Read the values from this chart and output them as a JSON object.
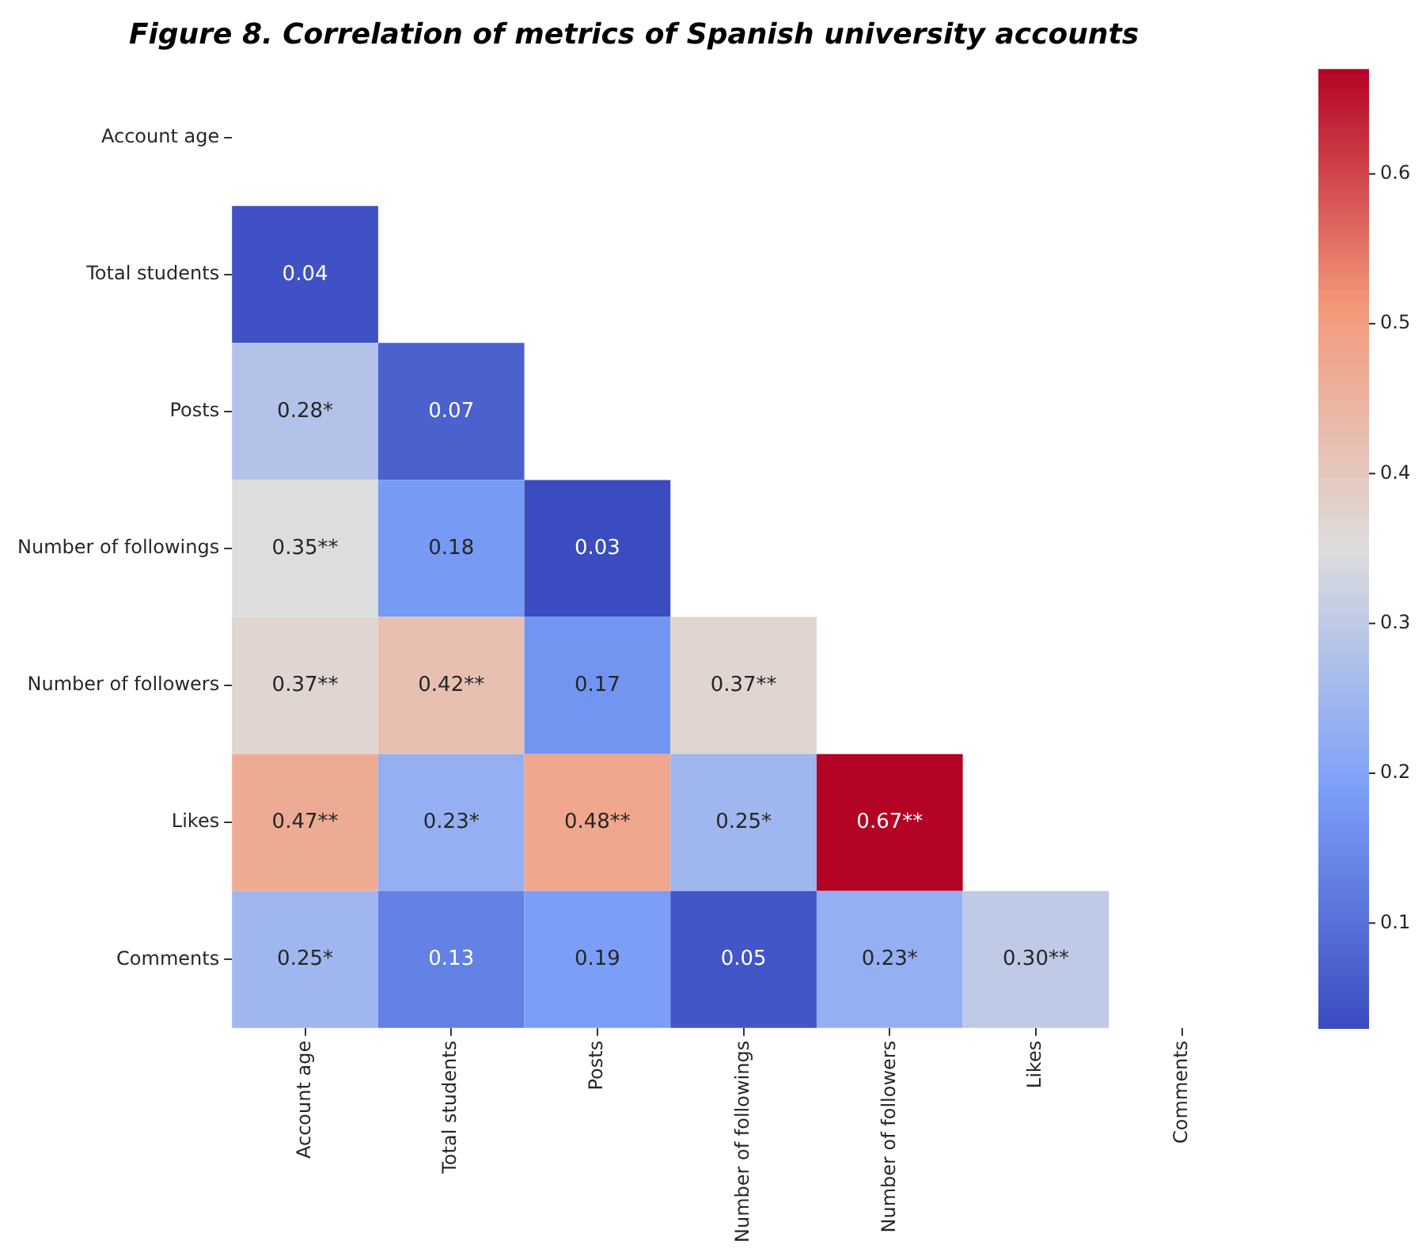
{
  "chart_data": {
    "type": "heatmap",
    "title": "Figure 8. Correlation of metrics of Spanish university accounts",
    "categories": [
      "Account age",
      "Total students",
      "Posts",
      "Number of followings",
      "Number of followers",
      "Likes",
      "Comments"
    ],
    "y_categories": [
      "Account age",
      "Total students",
      "Posts",
      "Number of followings",
      "Number of followers",
      "Likes",
      "Comments"
    ],
    "cells": [
      [
        null,
        null,
        null,
        null,
        null,
        null,
        null
      ],
      [
        0.04,
        null,
        null,
        null,
        null,
        null,
        null
      ],
      [
        0.28,
        0.07,
        null,
        null,
        null,
        null,
        null
      ],
      [
        0.35,
        0.18,
        0.03,
        null,
        null,
        null,
        null
      ],
      [
        0.37,
        0.42,
        0.17,
        0.37,
        null,
        null,
        null
      ],
      [
        0.47,
        0.23,
        0.48,
        0.25,
        0.67,
        null,
        null
      ],
      [
        0.25,
        0.13,
        0.19,
        0.05,
        0.23,
        0.3,
        null
      ]
    ],
    "cell_labels": [
      [
        null,
        null,
        null,
        null,
        null,
        null,
        null
      ],
      [
        "0.04",
        null,
        null,
        null,
        null,
        null,
        null
      ],
      [
        "0.28*",
        "0.07",
        null,
        null,
        null,
        null,
        null
      ],
      [
        "0.35**",
        "0.18",
        "0.03",
        null,
        null,
        null,
        null
      ],
      [
        "0.37**",
        "0.42**",
        "0.17",
        "0.37**",
        null,
        null,
        null
      ],
      [
        "0.47**",
        "0.23*",
        "0.48**",
        "0.25*",
        "0.67**",
        null,
        null
      ],
      [
        "0.25*",
        "0.13",
        "0.19",
        "0.05",
        "0.23*",
        "0.30**",
        null
      ]
    ],
    "clim": [
      0.03,
      0.67
    ],
    "cticks": [
      0.1,
      0.2,
      0.3,
      0.4,
      0.5,
      0.6
    ]
  }
}
